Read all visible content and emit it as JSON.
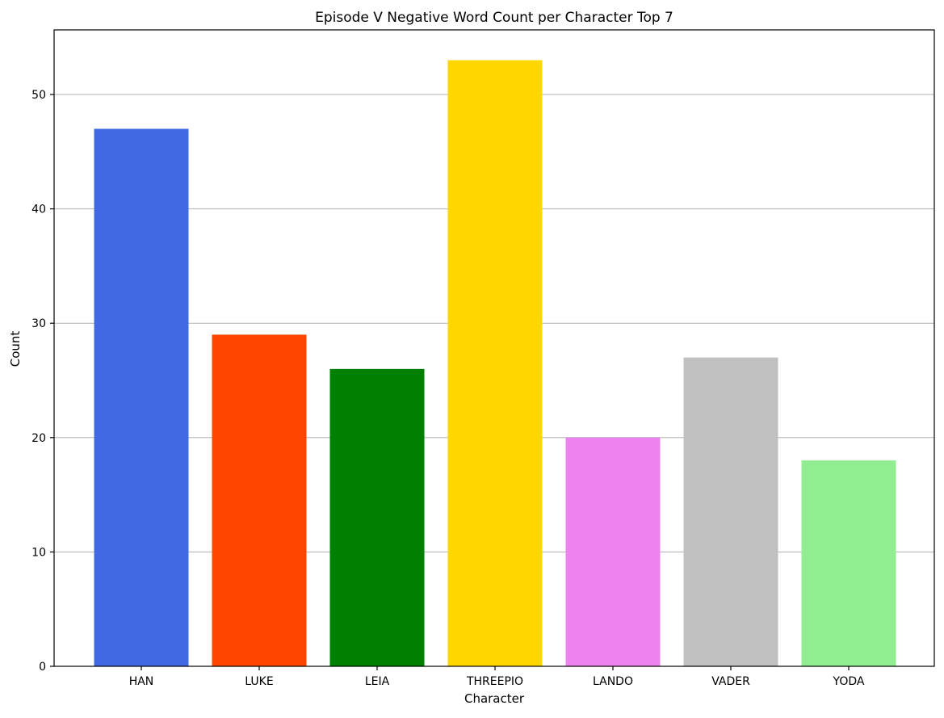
{
  "chart_data": {
    "type": "bar",
    "title": "Episode V Negative Word Count per Character Top 7",
    "xlabel": "Character",
    "ylabel": "Count",
    "categories": [
      "HAN",
      "LUKE",
      "LEIA",
      "THREEPIO",
      "LANDO",
      "VADER",
      "YODA"
    ],
    "values": [
      47,
      29,
      26,
      53,
      20,
      27,
      18
    ],
    "colors": [
      "#4169e1",
      "#ff4500",
      "#008000",
      "#ffd700",
      "#ee82ee",
      "#c0c0c0",
      "#90ee90"
    ],
    "ylim": [
      0,
      55.65
    ],
    "yticks": [
      0,
      10,
      20,
      30,
      40,
      50
    ],
    "grid": "y-major",
    "legend": "none"
  }
}
